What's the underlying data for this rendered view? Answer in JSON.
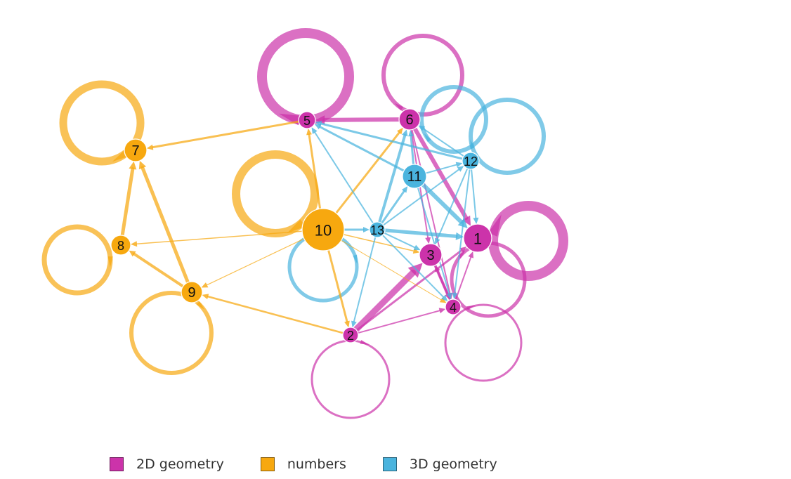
{
  "groups": [
    {
      "id": "2d",
      "label": "2D geometry",
      "color": "#cc33aa"
    },
    {
      "id": "num",
      "label": "numbers",
      "color": "#f7a80f"
    },
    {
      "id": "3d",
      "label": "3D geometry",
      "color": "#4ab4de"
    }
  ],
  "nodes": [
    {
      "id": "1",
      "label": "1",
      "group": "2d"
    },
    {
      "id": "2",
      "label": "2",
      "group": "2d"
    },
    {
      "id": "3",
      "label": "3",
      "group": "2d"
    },
    {
      "id": "4",
      "label": "4",
      "group": "2d"
    },
    {
      "id": "5",
      "label": "5",
      "group": "2d"
    },
    {
      "id": "6",
      "label": "6",
      "group": "2d"
    },
    {
      "id": "7",
      "label": "7",
      "group": "num"
    },
    {
      "id": "8",
      "label": "8",
      "group": "num"
    },
    {
      "id": "9",
      "label": "9",
      "group": "num"
    },
    {
      "id": "10",
      "label": "10",
      "group": "num"
    },
    {
      "id": "11",
      "label": "11",
      "group": "3d"
    },
    {
      "id": "12",
      "label": "12",
      "group": "3d"
    },
    {
      "id": "13",
      "label": "13",
      "group": "3d"
    }
  ],
  "edges": [
    {
      "from": "6",
      "to": "5",
      "group": "2d"
    },
    {
      "from": "6",
      "to": "1",
      "group": "2d"
    },
    {
      "from": "6",
      "to": "3",
      "group": "2d"
    },
    {
      "from": "6",
      "to": "4",
      "group": "2d"
    },
    {
      "from": "2",
      "to": "3",
      "group": "2d"
    },
    {
      "from": "2",
      "to": "1",
      "group": "2d"
    },
    {
      "from": "2",
      "to": "4",
      "group": "2d"
    },
    {
      "from": "3",
      "to": "4",
      "group": "2d"
    },
    {
      "from": "4",
      "to": "3",
      "group": "2d"
    },
    {
      "from": "4",
      "to": "1",
      "group": "2d"
    },
    {
      "from": "9",
      "to": "7",
      "group": "num"
    },
    {
      "from": "9",
      "to": "8",
      "group": "num"
    },
    {
      "from": "8",
      "to": "7",
      "group": "num"
    },
    {
      "from": "5",
      "to": "7",
      "group": "num"
    },
    {
      "from": "10",
      "to": "8",
      "group": "num"
    },
    {
      "from": "10",
      "to": "9",
      "group": "num"
    },
    {
      "from": "10",
      "to": "5",
      "group": "num"
    },
    {
      "from": "10",
      "to": "6",
      "group": "num"
    },
    {
      "from": "10",
      "to": "2",
      "group": "num"
    },
    {
      "from": "10",
      "to": "3",
      "group": "num"
    },
    {
      "from": "10",
      "to": "4",
      "group": "num"
    },
    {
      "from": "2",
      "to": "9",
      "group": "num"
    },
    {
      "from": "13",
      "to": "1",
      "group": "3d"
    },
    {
      "from": "13",
      "to": "5",
      "group": "3d"
    },
    {
      "from": "13",
      "to": "6",
      "group": "3d"
    },
    {
      "from": "13",
      "to": "11",
      "group": "3d"
    },
    {
      "from": "13",
      "to": "12",
      "group": "3d"
    },
    {
      "from": "13",
      "to": "2",
      "group": "3d"
    },
    {
      "from": "13",
      "to": "3",
      "group": "3d"
    },
    {
      "from": "13",
      "to": "4",
      "group": "3d"
    },
    {
      "from": "11",
      "to": "5",
      "group": "3d"
    },
    {
      "from": "11",
      "to": "6",
      "group": "3d"
    },
    {
      "from": "11",
      "to": "1",
      "group": "3d"
    },
    {
      "from": "11",
      "to": "12",
      "group": "3d"
    },
    {
      "from": "11",
      "to": "4",
      "group": "3d"
    },
    {
      "from": "12",
      "to": "5",
      "group": "3d"
    },
    {
      "from": "12",
      "to": "6",
      "group": "3d"
    },
    {
      "from": "12",
      "to": "1",
      "group": "3d"
    },
    {
      "from": "12",
      "to": "4",
      "group": "3d"
    },
    {
      "from": "12",
      "to": "3",
      "group": "3d"
    },
    {
      "from": "10",
      "to": "13",
      "group": "3d"
    }
  ],
  "self_loops": [
    "1",
    "2",
    "3",
    "4",
    "5",
    "6",
    "7",
    "8",
    "9",
    "10",
    "11",
    "12",
    "13"
  ]
}
